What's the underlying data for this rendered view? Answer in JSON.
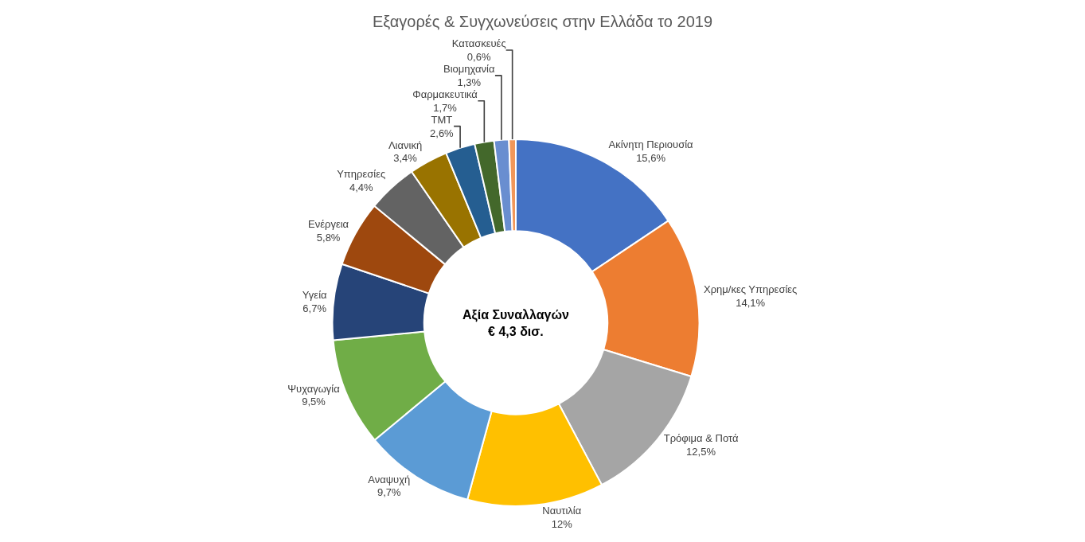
{
  "chart_data": {
    "type": "donut",
    "title": "Εξαγορές & Συγχωνεύσεις στην Ελλάδα το 2019",
    "categories": [
      "Ακίνητη Περιουσία",
      "Χρημ/κες Υπηρεσίες",
      "Τρόφιμα & Ποτά",
      "Ναυτιλία",
      "Αναψυχή",
      "Ψυχαγωγία",
      "Υγεία",
      "Ενέργεια",
      "Υπηρεσίες",
      "Λιανική",
      "TMT",
      "Φαρμακευτικά",
      "Βιομηχανία",
      "Κατασκευές"
    ],
    "values": [
      15.6,
      14.1,
      12.5,
      12,
      9.7,
      9.5,
      6.7,
      5.8,
      4.4,
      3.4,
      2.6,
      1.7,
      1.3,
      0.6
    ],
    "value_labels": [
      "15,6%",
      "14,1%",
      "12,5%",
      "12%",
      "9,7%",
      "9,5%",
      "6,7%",
      "5,8%",
      "4,4%",
      "3,4%",
      "2,6%",
      "1,7%",
      "1,3%",
      "0,6%"
    ],
    "colors": [
      "#4472c4",
      "#ed7d31",
      "#a5a5a5",
      "#ffc000",
      "#5b9bd5",
      "#70ad47",
      "#264478",
      "#9e480e",
      "#636363",
      "#997300",
      "#255e91",
      "#43682b",
      "#698ed0",
      "#f1975a"
    ],
    "annotations": [
      "Αξία Συναλλαγών\n€ 4,3 δισ."
    ],
    "legend": false
  }
}
